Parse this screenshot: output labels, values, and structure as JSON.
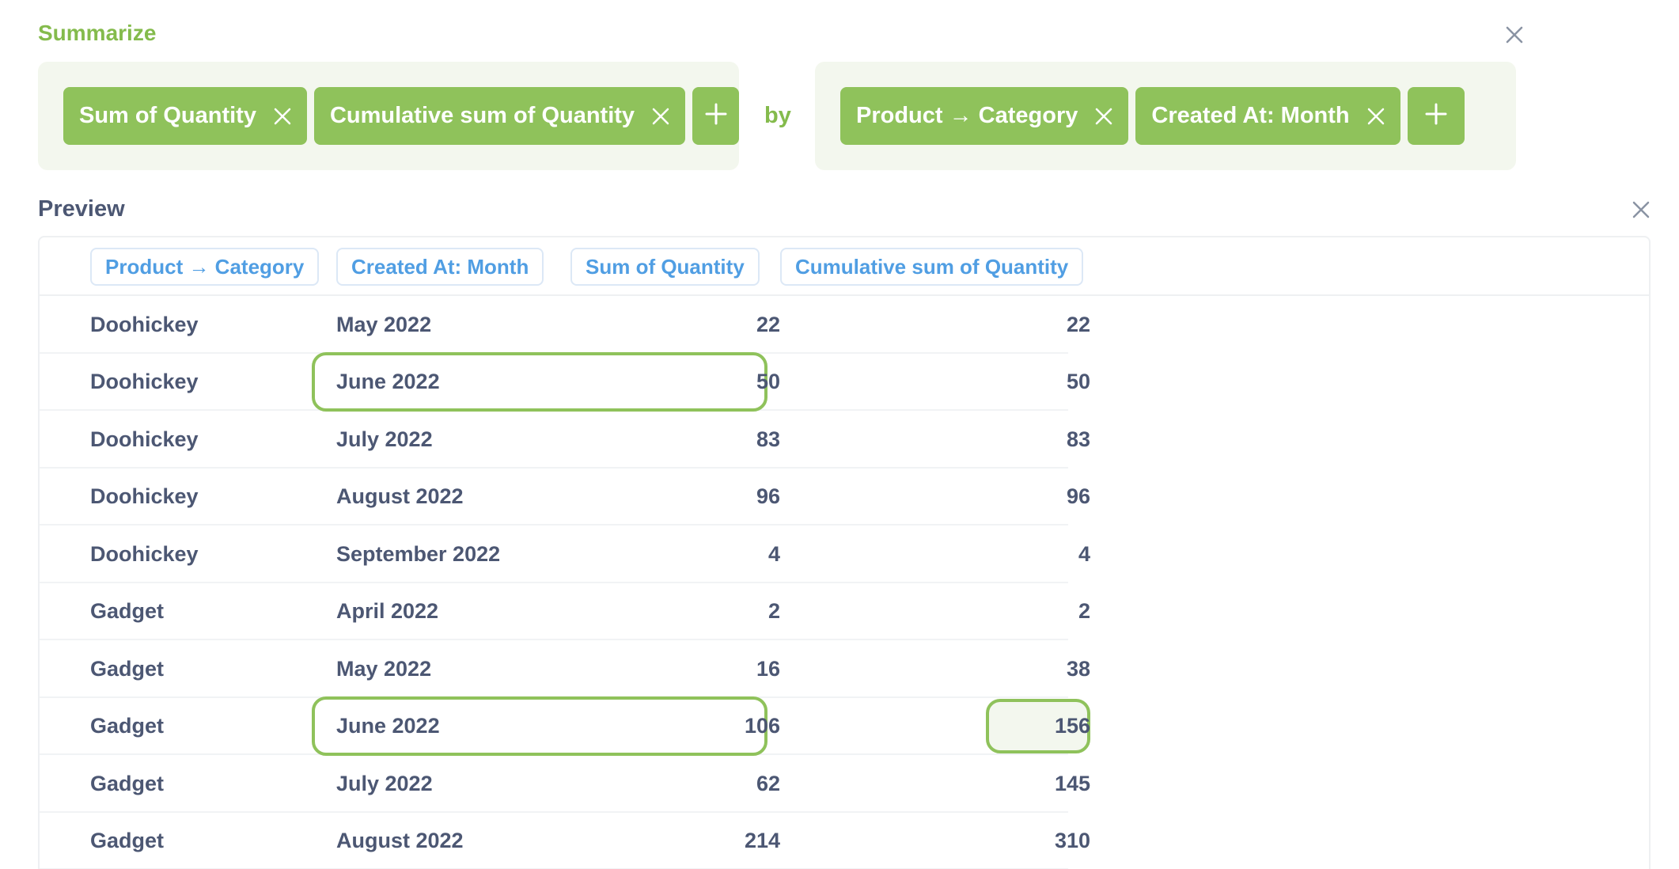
{
  "summarize": {
    "title": "Summarize",
    "metrics": [
      {
        "label": "Sum of Quantity"
      },
      {
        "label": "Cumulative sum of Quantity"
      }
    ],
    "by_label": "by",
    "groupings": [
      {
        "label": "Product → Category"
      },
      {
        "label": "Created At: Month"
      }
    ]
  },
  "preview": {
    "title": "Preview",
    "columns": [
      "Product → Category",
      "Created At: Month",
      "Sum of Quantity",
      "Cumulative sum of Quantity"
    ],
    "rows": [
      {
        "category": "Doohickey",
        "month": "May 2022",
        "sum": "22",
        "cumulative": "22"
      },
      {
        "category": "Doohickey",
        "month": "June 2022",
        "sum": "50",
        "cumulative": "50"
      },
      {
        "category": "Doohickey",
        "month": "July 2022",
        "sum": "83",
        "cumulative": "83"
      },
      {
        "category": "Doohickey",
        "month": "August 2022",
        "sum": "96",
        "cumulative": "96"
      },
      {
        "category": "Doohickey",
        "month": "September 2022",
        "sum": "4",
        "cumulative": "4"
      },
      {
        "category": "Gadget",
        "month": "April 2022",
        "sum": "2",
        "cumulative": "2"
      },
      {
        "category": "Gadget",
        "month": "May 2022",
        "sum": "16",
        "cumulative": "38"
      },
      {
        "category": "Gadget",
        "month": "June 2022",
        "sum": "106",
        "cumulative": "156"
      },
      {
        "category": "Gadget",
        "month": "July 2022",
        "sum": "62",
        "cumulative": "145"
      },
      {
        "category": "Gadget",
        "month": "August 2022",
        "sum": "214",
        "cumulative": "310"
      }
    ]
  },
  "colors": {
    "accent_green": "#8fc25b",
    "panel_bg": "#f3f7ee",
    "header_blue": "#509ee3",
    "text": "#4c5773"
  },
  "icons": {
    "close": "close-icon",
    "remove": "x-icon",
    "add": "plus-icon"
  }
}
